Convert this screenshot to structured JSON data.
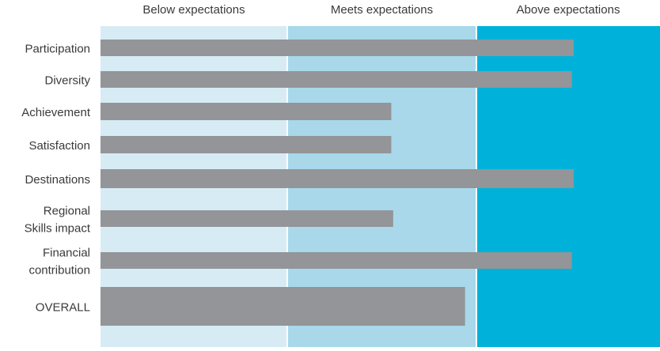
{
  "chart_data": {
    "type": "bar",
    "orientation": "horizontal",
    "title": "",
    "xlabel": "",
    "ylabel": "",
    "bands": [
      {
        "label": "Below expectations",
        "color": "#d7ebf4"
      },
      {
        "label": "Meets expectations",
        "color": "#a8d8ea"
      },
      {
        "label": "Above expectations",
        "color": "#00b2d9"
      }
    ],
    "xlim": [
      0,
      3
    ],
    "categories": [
      [
        "Participation"
      ],
      [
        "Diversity"
      ],
      [
        "Achievement"
      ],
      [
        "Satisfaction"
      ],
      [
        "Destinations"
      ],
      [
        "Regional",
        "Skills impact"
      ],
      [
        "Financial",
        "contribution"
      ],
      [
        "OVERALL"
      ]
    ],
    "values": [
      2.53,
      2.52,
      1.55,
      1.55,
      2.53,
      1.56,
      2.52,
      1.94
    ],
    "bar_color": "#939598",
    "grid": false,
    "legend": "bands-top"
  }
}
